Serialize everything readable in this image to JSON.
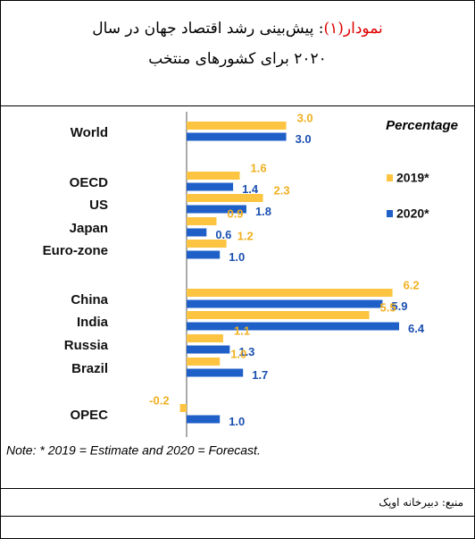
{
  "header": {
    "title_prefix": "نمودار(۱)",
    "title": ": پیش‌بینی رشد اقتصاد جهان در سال ۲۰۲۰ برای کشورهای منتخب"
  },
  "chart_data": {
    "type": "bar",
    "orientation": "horizontal",
    "unit_label": "Percentage",
    "categories": [
      "World",
      "OECD",
      "US",
      "Japan",
      "Euro-zone",
      "China",
      "India",
      "Russia",
      "Brazil",
      "OPEC"
    ],
    "series": [
      {
        "name": "2019*",
        "color": "#fcc440",
        "values": [
          3.0,
          1.6,
          2.3,
          0.9,
          1.2,
          6.2,
          5.5,
          1.1,
          1.0,
          -0.2
        ],
        "value_labels": [
          "3.0",
          "1.6",
          "2.3",
          "0.9",
          "1.2",
          "6.2",
          "5.5",
          "1.1",
          "1.0",
          "-0.2"
        ]
      },
      {
        "name": "2020*",
        "color": "#1f5fc8",
        "values": [
          3.0,
          1.4,
          1.8,
          0.6,
          1.0,
          5.9,
          6.4,
          1.3,
          1.7,
          1.0
        ],
        "value_labels": [
          "3.0",
          "1.4",
          "1.8",
          "0.6",
          "1.0",
          "5.9",
          "6.4",
          "1.3",
          "1.7",
          "1.0"
        ]
      }
    ],
    "note": "Note: * 2019 = Estimate and 2020 = Forecast."
  },
  "footer": {
    "source": "منبع: دبیرخانه اوپک"
  }
}
